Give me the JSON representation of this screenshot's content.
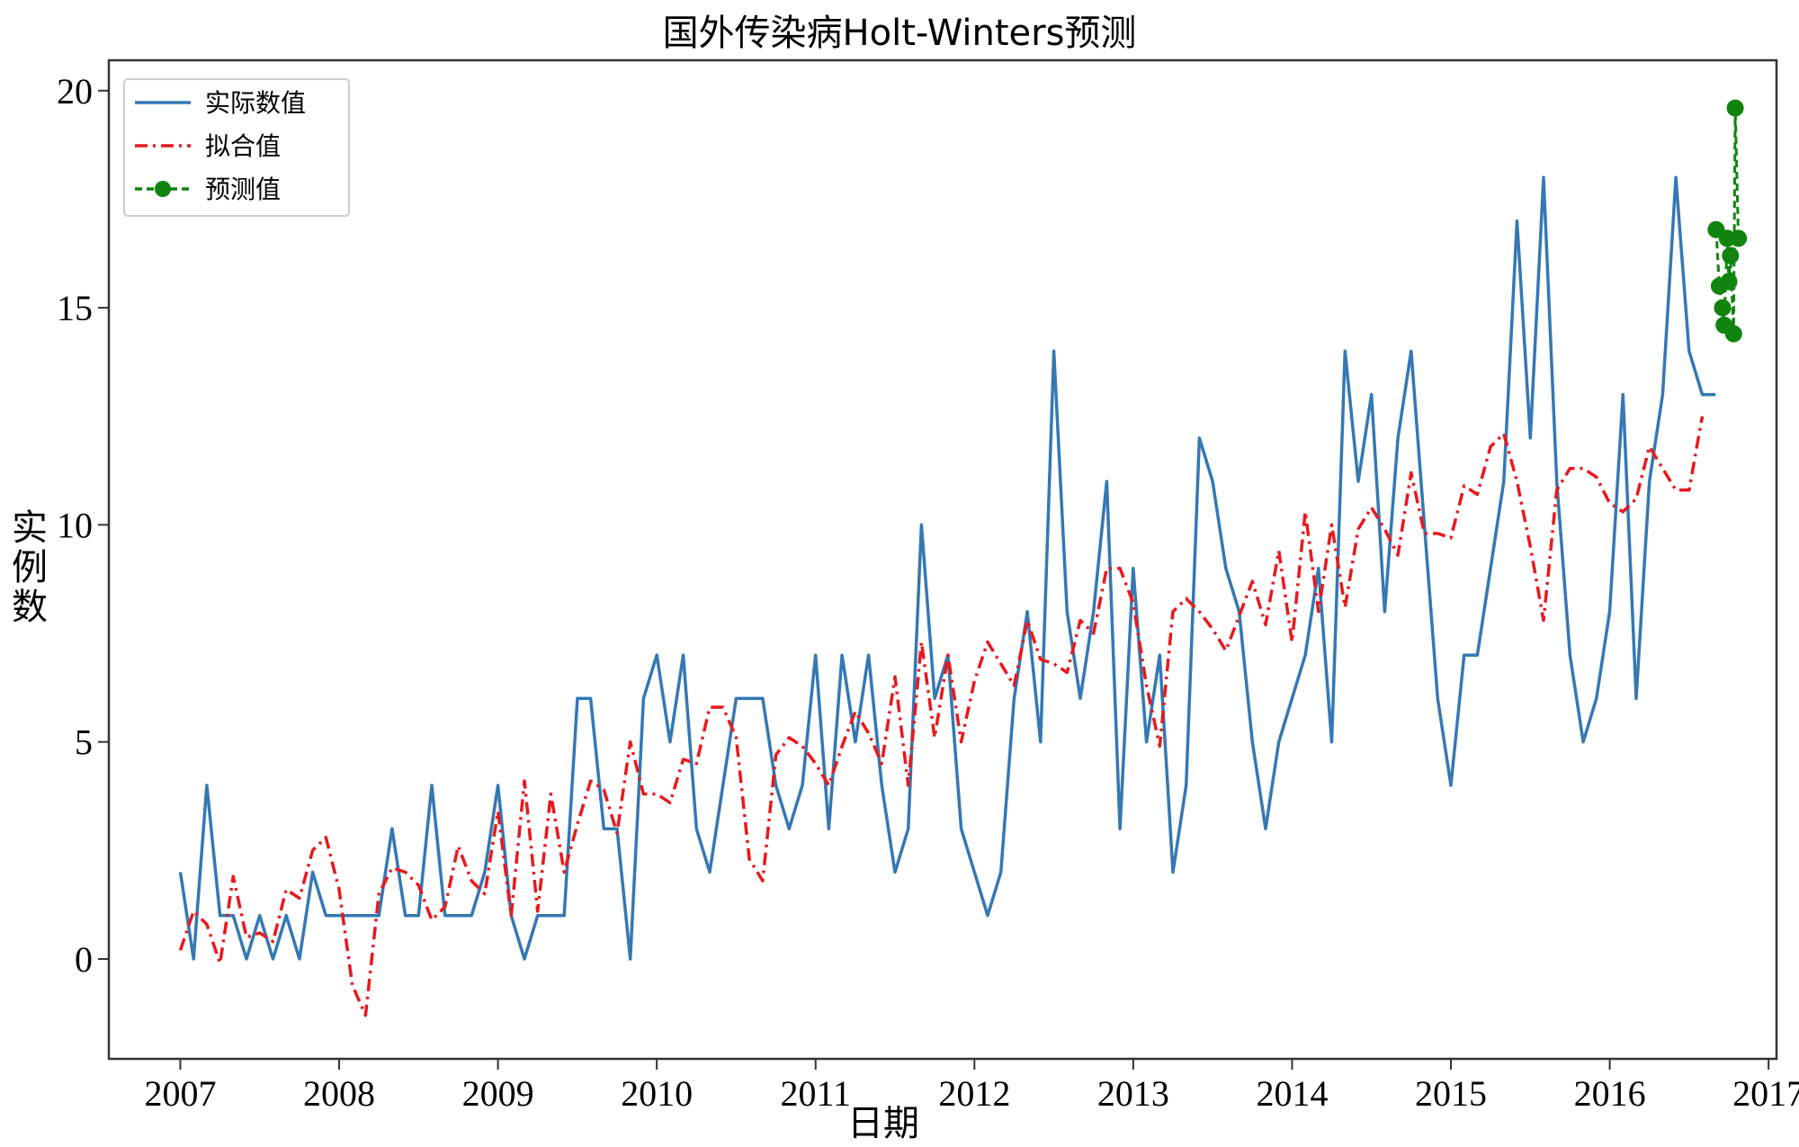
{
  "chart_data": {
    "type": "line",
    "title": "国外传染病Holt-Winters预测",
    "xlabel": "日期",
    "ylabel": "实例数",
    "xlim": [
      2006.55,
      2017.05
    ],
    "ylim": [
      -2.3,
      20.7
    ],
    "x_ticks": [
      2007,
      2008,
      2009,
      2010,
      2011,
      2012,
      2013,
      2014,
      2015,
      2016,
      2017
    ],
    "y_ticks": [
      0,
      5,
      10,
      15,
      20
    ],
    "grid": false,
    "legend_position": "top-left",
    "x_start": 2007.0,
    "x_step": 0.08333,
    "series": [
      {
        "name": "实际数值",
        "color": "#3478b4",
        "style": "solid",
        "values": [
          2,
          0,
          4,
          1,
          1,
          0,
          1,
          0,
          1,
          0,
          2,
          1,
          1,
          1,
          1,
          1,
          3,
          1,
          1,
          4,
          1,
          1,
          1,
          2,
          4,
          1,
          0,
          1,
          1,
          1,
          6,
          6,
          3,
          3,
          0,
          6,
          7,
          5,
          7,
          3,
          2,
          4,
          6,
          6,
          6,
          4,
          3,
          4,
          7,
          3,
          7,
          5,
          7,
          4,
          2,
          3,
          10,
          6,
          7,
          3,
          2,
          1,
          2,
          6,
          8,
          5,
          14,
          8,
          6,
          8,
          11,
          3,
          9,
          5,
          7,
          2,
          4,
          12,
          11,
          9,
          8,
          5,
          3,
          5,
          6,
          7,
          9,
          5,
          14,
          11,
          13,
          8,
          12,
          14,
          10,
          6,
          4,
          7,
          7,
          9,
          11,
          17,
          12,
          18,
          11,
          7,
          5,
          6,
          8,
          13,
          6,
          11,
          13,
          18,
          14,
          13,
          13
        ]
      },
      {
        "name": "拟合值",
        "color": "#e8191e",
        "style": "dashdot",
        "values": [
          0.2,
          1.1,
          0.8,
          -0.1,
          1.9,
          0.5,
          0.6,
          0.4,
          1.6,
          1.4,
          2.5,
          2.8,
          1.6,
          -0.6,
          -1.3,
          1.5,
          2.1,
          2.0,
          1.7,
          0.9,
          1.2,
          2.6,
          1.8,
          1.5,
          3.4,
          1.0,
          4.1,
          1.1,
          3.8,
          2.0,
          3.1,
          4.1,
          3.9,
          2.9,
          5.0,
          3.8,
          3.8,
          3.6,
          4.6,
          4.5,
          5.8,
          5.8,
          5.1,
          2.3,
          1.8,
          4.7,
          5.1,
          4.9,
          4.5,
          4.0,
          4.9,
          5.7,
          5.2,
          4.5,
          6.5,
          4.0,
          7.3,
          5.1,
          7.0,
          5.0,
          6.4,
          7.3,
          6.8,
          6.3,
          7.8,
          6.9,
          6.8,
          6.6,
          7.8,
          7.5,
          9.0,
          9.0,
          8.2,
          6.3,
          4.9,
          8.0,
          8.3,
          8.0,
          7.6,
          7.1,
          7.9,
          8.7,
          7.7,
          9.4,
          7.3,
          10.3,
          8.0,
          10.0,
          8.1,
          9.9,
          10.4,
          9.9,
          9.3,
          11.2,
          9.8,
          9.8,
          9.7,
          10.9,
          10.7,
          11.8,
          12.1,
          11.0,
          9.5,
          7.8,
          10.8,
          11.3,
          11.3,
          11.1,
          10.5,
          10.3,
          10.6,
          11.8,
          11.3,
          10.8,
          10.8,
          12.5
        ]
      },
      {
        "name": "预测值",
        "color": "#10840e",
        "style": "dashed-marker",
        "x": [
          2016.67,
          2016.69,
          2016.71,
          2016.72,
          2016.74,
          2016.75,
          2016.76,
          2016.78,
          2016.79,
          2016.81
        ],
        "values": [
          16.8,
          15.5,
          15.0,
          14.6,
          16.6,
          15.6,
          16.2,
          14.4,
          19.6,
          16.6
        ]
      }
    ]
  }
}
